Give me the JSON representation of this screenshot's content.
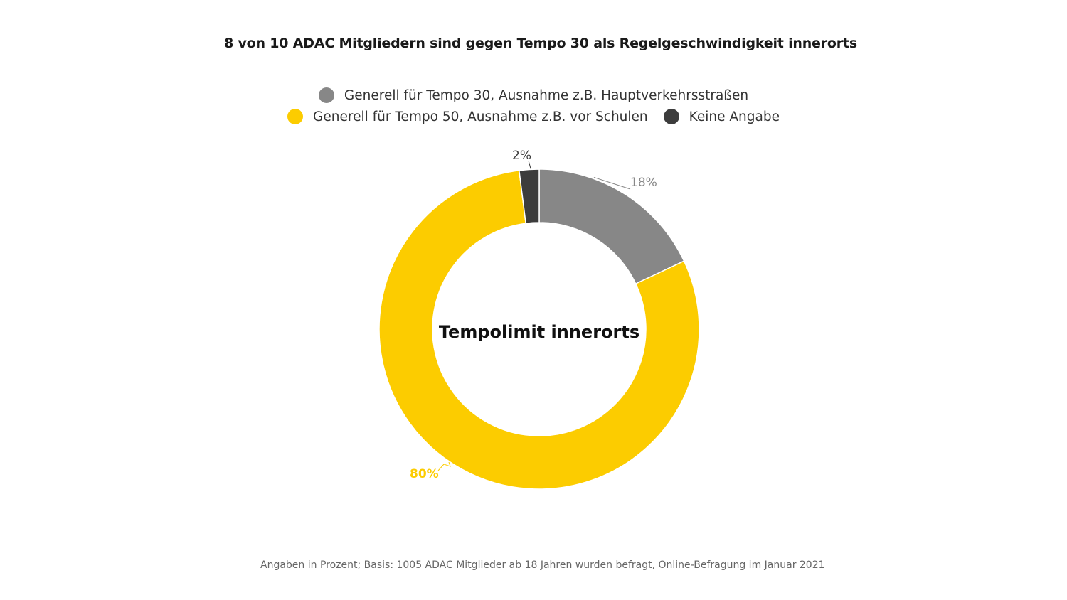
{
  "chart_data": {
    "type": "pie",
    "variant": "donut",
    "title": "8 von 10 ADAC Mitgliedern sind gegen Tempo 30 als Regelgeschwindigkeit innerorts",
    "center_label": "Tempolimit innerorts",
    "unit": "%",
    "legend_placement": "top",
    "slices": [
      {
        "name": "Generell für Tempo 30, Ausnahme z.B. Hauptverkehrsstraßen",
        "value": 18,
        "label": "18%",
        "color": "#878787"
      },
      {
        "name": "Generell für Tempo 50, Ausnahme z.B. vor Schulen",
        "value": 80,
        "label": "80%",
        "color": "#fccc00"
      },
      {
        "name": "Keine Angabe",
        "value": 2,
        "label": "2%",
        "color": "#3c3c3c"
      }
    ],
    "footnote": "Angaben in Prozent; Basis: 1005 ADAC Mitglieder ab 18 Jahren wurden befragt, Online-Befragung im Januar 2021"
  }
}
